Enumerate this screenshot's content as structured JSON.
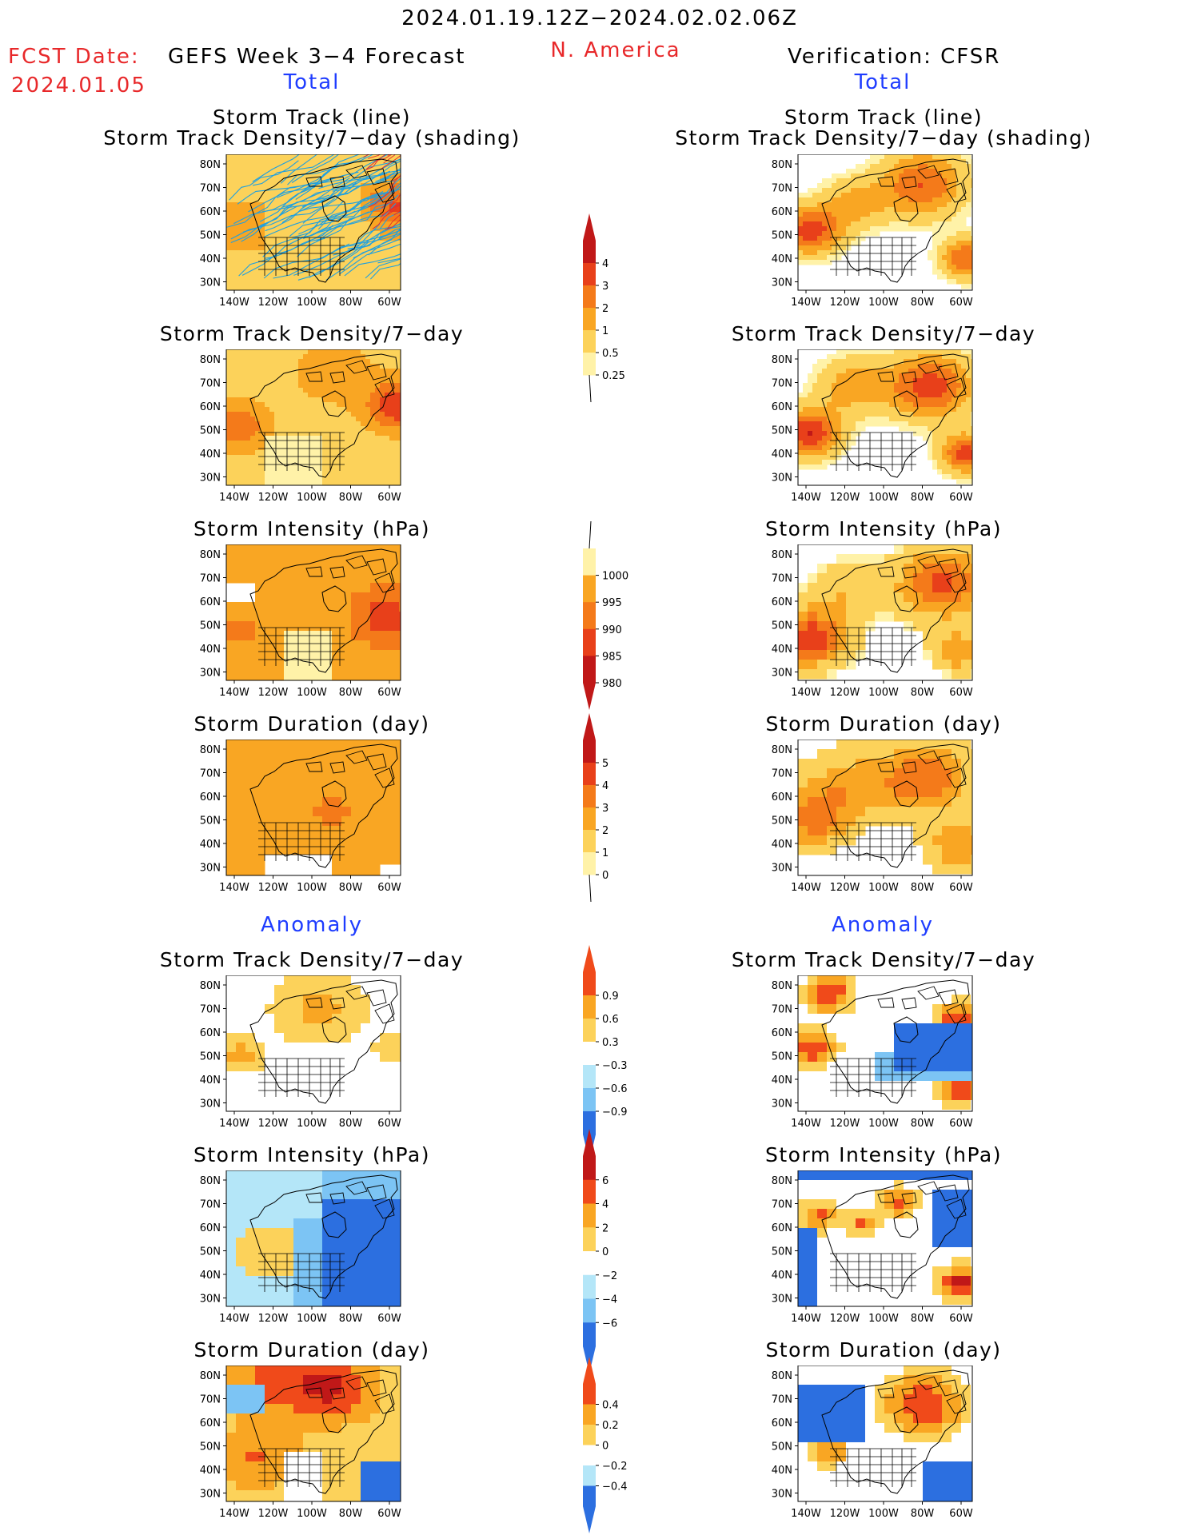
{
  "header": {
    "date_range": "2024.01.19.12Z−2024.02.02.06Z",
    "fcst_label": "FCST Date:",
    "fcst_date": "2024.01.05",
    "left_title": "GEFS Week 3−4 Forecast",
    "region": "N. America",
    "right_title": "Verification: CFSR",
    "left_section": "Total",
    "right_section": "Total",
    "left_anomaly": "Anomaly",
    "right_anomaly": "Anomaly"
  },
  "panel_titles": {
    "track_line": "Storm Track (line)",
    "track_shading": "Storm Track Density/7−day (shading)",
    "density": "Storm Track Density/7−day",
    "intensity": "Storm Intensity (hPa)",
    "duration": "Storm Duration (day)"
  },
  "axes": {
    "lat_labels": [
      "80N",
      "70N",
      "60N",
      "50N",
      "40N",
      "30N"
    ],
    "lon_labels": [
      "140W",
      "120W",
      "100W",
      "80W",
      "60W"
    ]
  },
  "colorbars": {
    "density_total": {
      "labels": [
        "4",
        "3",
        "2",
        "1",
        "0.5",
        "0.25"
      ],
      "colors": [
        "#c01818",
        "#e8401a",
        "#f47a1a",
        "#f9a623",
        "#fcd25a",
        "#fff2a8"
      ]
    },
    "intensity_total": {
      "labels": [
        "1000",
        "995",
        "990",
        "985",
        "980"
      ],
      "colors": [
        "#fff2a8",
        "#f9a623",
        "#f47a1a",
        "#e8401a",
        "#c01818"
      ]
    },
    "duration_total": {
      "labels": [
        "5",
        "4",
        "3",
        "2",
        "1",
        "0"
      ],
      "colors": [
        "#c01818",
        "#e8401a",
        "#f47a1a",
        "#f9a623",
        "#fcd25a",
        "#fff2a8"
      ]
    },
    "density_anom": {
      "labels": [
        "0.9",
        "0.6",
        "0.3",
        "−0.3",
        "−0.6",
        "−0.9"
      ],
      "colors": [
        "#f04a1a",
        "#f9a623",
        "#fcd25a",
        "#ffffff",
        "#b4e6f8",
        "#7cc4f4",
        "#2c6fe0"
      ]
    },
    "intensity_anom": {
      "labels": [
        "6",
        "4",
        "2",
        "0",
        "−2",
        "−4",
        "−6"
      ],
      "colors": [
        "#c01818",
        "#f04a1a",
        "#f9a623",
        "#fcd25a",
        "#ffffff",
        "#b4e6f8",
        "#7cc4f4",
        "#2c6fe0"
      ]
    },
    "duration_anom": {
      "labels": [
        "0.4",
        "0.2",
        "0",
        "−0.2",
        "−0.4"
      ],
      "colors": [
        "#f04a1a",
        "#f9a623",
        "#fcd25a",
        "#ffffff",
        "#b4e6f8",
        "#2c6fe0"
      ]
    }
  }
}
